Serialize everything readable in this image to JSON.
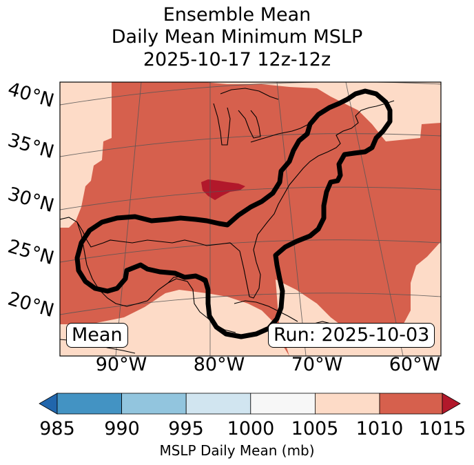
{
  "title": {
    "line1": "Ensemble Mean",
    "line2": "Daily Mean Minimum MSLP",
    "line3": "2025-10-17 12z-12z"
  },
  "map": {
    "lat_labels": [
      "40°N",
      "35°N",
      "30°N",
      "25°N",
      "20°N"
    ],
    "lon_labels": [
      "90°W",
      "80°W",
      "70°W",
      "60°W"
    ],
    "mean_label": "Mean",
    "run_label": "Run: 2025-10-03",
    "colors": {
      "mslp_1005_1010": "#fddbc7",
      "mslp_1010_1015": "#d6604d",
      "mslp_above_1015": "#b2182b",
      "contour": "#000000",
      "coastline": "#000000",
      "gridline": "#555555"
    }
  },
  "colorbar": {
    "ticks": [
      "985",
      "990",
      "995",
      "1000",
      "1005",
      "1010",
      "1015"
    ],
    "colors": [
      "#2166ac",
      "#4393c3",
      "#92c5de",
      "#d1e5f0",
      "#f7f7f7",
      "#fddbc7",
      "#d6604d",
      "#b2182b"
    ],
    "label": "MSLP Daily Mean (mb)"
  }
}
